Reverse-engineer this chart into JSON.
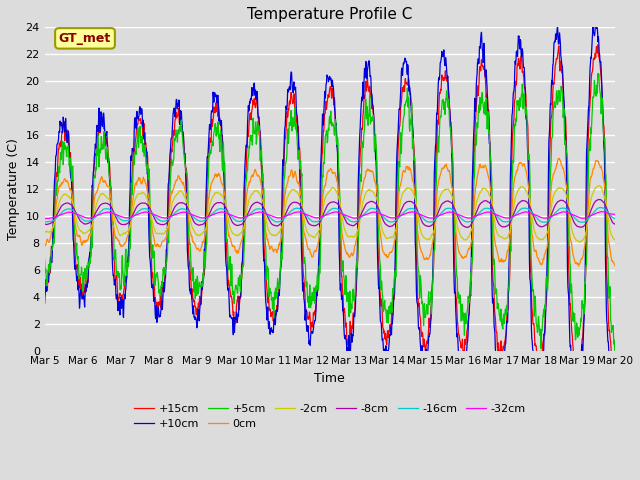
{
  "title": "Temperature Profile C",
  "xlabel": "Time",
  "ylabel": "Temperature (C)",
  "ylim": [
    0,
    24
  ],
  "yticks": [
    0,
    2,
    4,
    6,
    8,
    10,
    12,
    14,
    16,
    18,
    20,
    22,
    24
  ],
  "xtick_labels": [
    "Mar 5",
    "Mar 6",
    "Mar 7",
    "Mar 8",
    "Mar 9",
    "Mar 10",
    "Mar 11",
    "Mar 12",
    "Mar 13",
    "Mar 14",
    "Mar 15",
    "Mar 16",
    "Mar 17",
    "Mar 18",
    "Mar 19",
    "Mar 20"
  ],
  "series_labels": [
    "+15cm",
    "+10cm",
    "+5cm",
    "0cm",
    "-2cm",
    "-8cm",
    "-16cm",
    "-32cm"
  ],
  "series_colors": [
    "#ff0000",
    "#0000dd",
    "#00cc00",
    "#ff8800",
    "#cccc00",
    "#aa00aa",
    "#00cccc",
    "#ff00ff"
  ],
  "legend_annotation": "GT_met",
  "bg_color": "#dcdcdc",
  "grid_color": "#ffffff",
  "figsize": [
    6.4,
    4.8
  ],
  "dpi": 100
}
